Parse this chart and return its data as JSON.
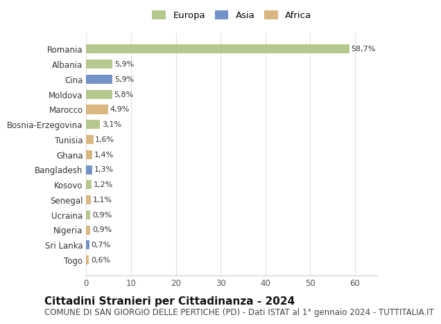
{
  "countries": [
    "Romania",
    "Albania",
    "Cina",
    "Moldova",
    "Marocco",
    "Bosnia-Erzegovina",
    "Tunisia",
    "Ghana",
    "Bangladesh",
    "Kosovo",
    "Senegal",
    "Ucraina",
    "Nigeria",
    "Sri Lanka",
    "Togo"
  ],
  "values": [
    58.7,
    5.9,
    5.9,
    5.8,
    4.9,
    3.1,
    1.6,
    1.4,
    1.3,
    1.2,
    1.1,
    0.9,
    0.9,
    0.7,
    0.6
  ],
  "labels": [
    "58,7%",
    "5,9%",
    "5,9%",
    "5,8%",
    "4,9%",
    "3,1%",
    "1,6%",
    "1,4%",
    "1,3%",
    "1,2%",
    "1,1%",
    "0,9%",
    "0,9%",
    "0,7%",
    "0,6%"
  ],
  "continents": [
    "Europa",
    "Europa",
    "Asia",
    "Europa",
    "Africa",
    "Europa",
    "Africa",
    "Africa",
    "Asia",
    "Europa",
    "Africa",
    "Europa",
    "Africa",
    "Asia",
    "Africa"
  ],
  "colors": {
    "Europa": "#a8c07a",
    "Asia": "#5b7fbf",
    "Africa": "#d4a96a"
  },
  "legend_colors": {
    "Europa": "#a8c07a",
    "Asia": "#5b7fbf",
    "Africa": "#d4a96a"
  },
  "xlim": [
    0,
    65
  ],
  "xticks": [
    0,
    10,
    20,
    30,
    40,
    50,
    60
  ],
  "title": "Cittadini Stranieri per Cittadinanza - 2024",
  "subtitle": "COMUNE DI SAN GIORGIO DELLE PERTICHE (PD) - Dati ISTAT al 1° gennaio 2024 - TUTTITALIA.IT",
  "background_color": "#ffffff",
  "grid_color": "#e0e0e0",
  "bar_height": 0.6,
  "title_fontsize": 11,
  "subtitle_fontsize": 8.5,
  "label_fontsize": 8,
  "tick_fontsize": 8.5
}
